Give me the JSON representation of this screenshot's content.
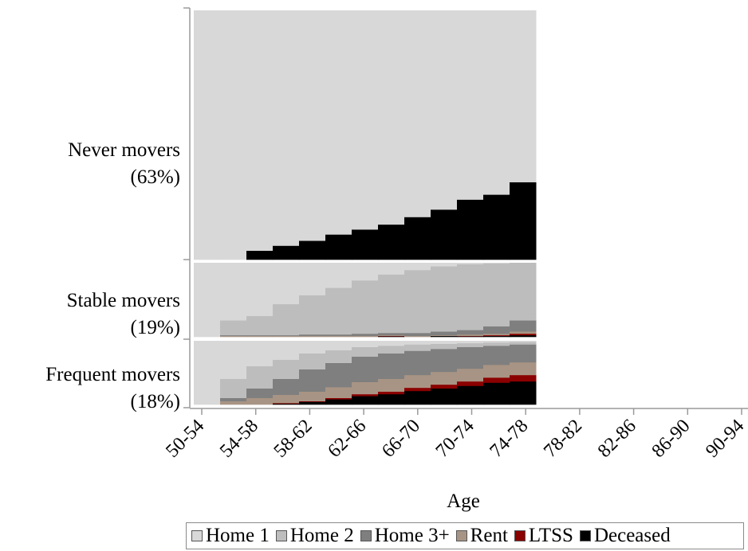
{
  "chart_data": {
    "type": "area",
    "xlabel": "Age",
    "ylabel": "",
    "x_ticks": [
      "50-54",
      "54-58",
      "58-62",
      "62-66",
      "66-70",
      "70-74",
      "74-78",
      "78-82",
      "82-86",
      "86-90",
      "90-94"
    ],
    "legend_position": "bottom",
    "states": [
      {
        "name": "Home 1",
        "color": "#d8d8d8"
      },
      {
        "name": "Home 2",
        "color": "#bdbdbd"
      },
      {
        "name": "Home 3+",
        "color": "#7f7f7f"
      },
      {
        "name": "Rent",
        "color": "#a89484"
      },
      {
        "name": "LTSS",
        "color": "#8b0000"
      },
      {
        "name": "Deceased",
        "color": "#000000"
      }
    ],
    "x": [
      "50-54",
      "52-56",
      "54-58",
      "56-60",
      "58-62",
      "60-64",
      "62-66",
      "64-68",
      "66-70",
      "68-72",
      "70-74",
      "72-76",
      "74-78"
    ],
    "clusters": [
      {
        "label_line1": "Never movers",
        "label_line2": "(63%)",
        "share": 0.63,
        "series": [
          {
            "name": "Home 1",
            "values": [
              1.0,
              1.0,
              0.965,
              0.945,
              0.925,
              0.9,
              0.88,
              0.86,
              0.83,
              0.8,
              0.76,
              0.74,
              0.69
            ]
          },
          {
            "name": "Deceased",
            "values": [
              0.0,
              0.0,
              0.035,
              0.055,
              0.075,
              0.1,
              0.12,
              0.14,
              0.17,
              0.2,
              0.24,
              0.26,
              0.31
            ]
          }
        ]
      },
      {
        "label_line1": "Stable movers",
        "label_line2": "(19%)",
        "share": 0.19,
        "series": [
          {
            "name": "Home 1",
            "values": [
              1.0,
              0.78,
              0.72,
              0.56,
              0.44,
              0.34,
              0.24,
              0.16,
              0.1,
              0.05,
              0.02,
              0.01,
              0.0
            ]
          },
          {
            "name": "Home 2",
            "values": [
              0.0,
              0.2,
              0.26,
              0.42,
              0.53,
              0.63,
              0.72,
              0.79,
              0.85,
              0.88,
              0.89,
              0.85,
              0.78
            ]
          },
          {
            "name": "Home 3+",
            "values": [
              0.0,
              0.01,
              0.01,
              0.01,
              0.02,
              0.02,
              0.03,
              0.03,
              0.04,
              0.05,
              0.06,
              0.1,
              0.15
            ]
          },
          {
            "name": "Rent",
            "values": [
              0.0,
              0.01,
              0.01,
              0.01,
              0.01,
              0.01,
              0.01,
              0.01,
              0.01,
              0.01,
              0.02,
              0.02,
              0.03
            ]
          },
          {
            "name": "LTSS",
            "values": [
              0.0,
              0.0,
              0.0,
              0.0,
              0.0,
              0.0,
              0.0,
              0.005,
              0.0,
              0.0,
              0.005,
              0.01,
              0.02
            ]
          },
          {
            "name": "Deceased",
            "values": [
              0.0,
              0.0,
              0.0,
              0.0,
              0.0,
              0.0,
              0.0,
              0.005,
              0.0,
              0.01,
              0.005,
              0.01,
              0.02
            ]
          }
        ]
      },
      {
        "label_line1": "Frequent movers",
        "label_line2": "(18%)",
        "share": 0.18,
        "series": [
          {
            "name": "Home 1",
            "values": [
              1.0,
              0.6,
              0.4,
              0.3,
              0.2,
              0.15,
              0.1,
              0.08,
              0.06,
              0.05,
              0.04,
              0.03,
              0.02
            ]
          },
          {
            "name": "Home 2",
            "values": [
              0.0,
              0.3,
              0.35,
              0.3,
              0.25,
              0.2,
              0.15,
              0.12,
              0.1,
              0.08,
              0.06,
              0.05,
              0.04
            ]
          },
          {
            "name": "Home 3+",
            "values": [
              0.0,
              0.05,
              0.15,
              0.25,
              0.35,
              0.38,
              0.4,
              0.4,
              0.38,
              0.36,
              0.34,
              0.3,
              0.28
            ]
          },
          {
            "name": "Rent",
            "values": [
              0.0,
              0.05,
              0.1,
              0.13,
              0.15,
              0.17,
              0.19,
              0.2,
              0.2,
              0.2,
              0.2,
              0.2,
              0.2
            ]
          },
          {
            "name": "LTSS",
            "values": [
              0.0,
              0.0,
              0.0,
              0.01,
              0.01,
              0.02,
              0.03,
              0.04,
              0.05,
              0.06,
              0.07,
              0.08,
              0.1
            ]
          },
          {
            "name": "Deceased",
            "values": [
              0.0,
              0.0,
              0.0,
              0.01,
              0.04,
              0.08,
              0.13,
              0.16,
              0.21,
              0.25,
              0.29,
              0.34,
              0.36
            ]
          }
        ]
      }
    ]
  }
}
